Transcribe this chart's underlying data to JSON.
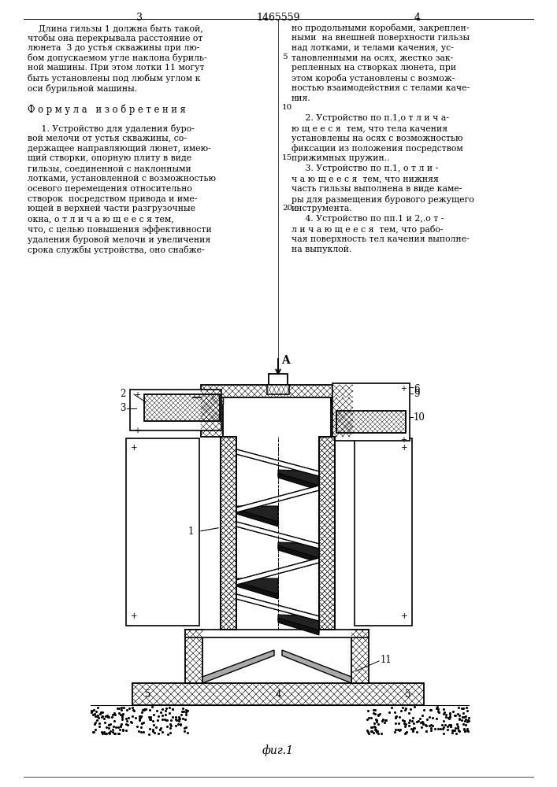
{
  "bg_color": "#ffffff",
  "header_page_left": "3",
  "header_patent": "1465559",
  "header_page_right": "4",
  "left_col_lines": [
    "    Длина гильзы 1 должна быть такой,",
    "чтобы она перекрывала расстояние от",
    "люнета  3 до устья скважины при лю-",
    "бом допускаемом угле наклона буриль-",
    "ной машины. При этом лотки 11 могут",
    "быть установлены под любым углом к",
    "оси бурильной машины.",
    "",
    "Ф о р м у л а   и з о б р е т е н и я",
    "",
    "     1. Устройство для удаления буро-",
    "вой мелочи от устья скважины, со-",
    "держащее направляющий люнет, имею-",
    "щий створки, опорную плиту в виде",
    "гильзы, соединенной с наклонными",
    "лотками, установленной с возможностью",
    "осевого перемещения относительно",
    "створок  посредством привода и име-",
    "ющей в верхней части разгрузочные",
    "окна, о т л и ч а ю щ е е с я тем,",
    "что, с целью повышения эффективности",
    "удаления буровой мелочи и увеличения",
    "срока службы устройства, оно снабже-"
  ],
  "right_col_lines": [
    "но продольными коробами, закреплен-",
    "ными  на внешней поверхности гильзы",
    "над лотками, и телами качения, ус-",
    "тановленными на осях, жестко зак-",
    "репленных на створках люнета, при",
    "этом короба установлены с возмож-",
    "ностью взаимодействия с телами каче-",
    "ния.",
    "",
    "     2. Устройство по п.1,о т л и ч а-",
    "ю щ е е с я  тем, что тела качения",
    "установлены на осях с возможностью",
    "фиксации из положения посредством",
    "прижимных пружин..",
    "     3. Устройство по п.1, о т л и -",
    "ч а ю щ е е с я  тем, что нижняя",
    "часть гильзы выполнена в виде каме-",
    "ры для размещения бурового режущего",
    "инструмента.",
    "     4. Устройство по пп.1 и 2,.о т -",
    "л и ч а ю щ е е с я  тем, что рабо-",
    "чая поверхность тел качения выполне-",
    "на выпуклой."
  ],
  "caption": "фиг.1"
}
